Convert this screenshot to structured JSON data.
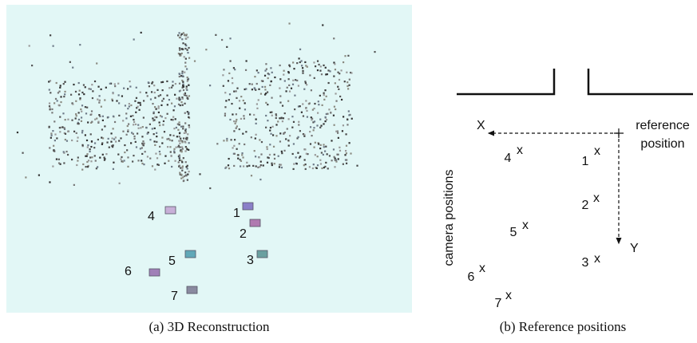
{
  "left_panel": {
    "labels": [
      "1",
      "2",
      "3",
      "4",
      "5",
      "6",
      "7"
    ],
    "caption": "(a) 3D Reconstruction"
  },
  "right_panel": {
    "labels": [
      "1",
      "2",
      "3",
      "4",
      "5",
      "6",
      "7"
    ],
    "marker": "x",
    "axis_x": "X",
    "axis_y": "Y",
    "reference": [
      "reference",
      "position"
    ],
    "side_label": "camera positions",
    "caption": "(b) Reference positions"
  }
}
